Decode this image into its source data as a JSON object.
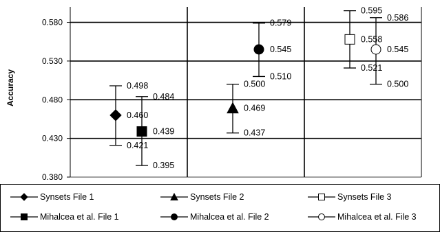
{
  "chart_data": {
    "type": "scatter",
    "ylabel": "Accuracy",
    "ylim": [
      0.38,
      0.6
    ],
    "yticks": [
      "0.380",
      "0.430",
      "0.480",
      "0.530",
      "0.580"
    ],
    "groups": 3,
    "series": [
      {
        "name": "Synsets File 1",
        "marker": "diamond",
        "filled": true,
        "group": 1,
        "offset": -1,
        "value": 0.46,
        "value_label": "0.460",
        "upper": 0.498,
        "upper_label": "0.498",
        "lower": 0.421,
        "lower_label": "0.421"
      },
      {
        "name": "Mihalcea et al. File 1",
        "marker": "square",
        "filled": true,
        "group": 1,
        "offset": 1,
        "value": 0.439,
        "value_label": "0.439",
        "upper": 0.484,
        "upper_label": "0.484",
        "lower": 0.395,
        "lower_label": "0.395"
      },
      {
        "name": "Synsets File 2",
        "marker": "triangle",
        "filled": true,
        "group": 2,
        "offset": -1,
        "value": 0.469,
        "value_label": "0.469",
        "upper": 0.5,
        "upper_label": "0.500",
        "lower": 0.437,
        "lower_label": "0.437"
      },
      {
        "name": "Mihalcea et al. File 2",
        "marker": "circle",
        "filled": true,
        "group": 2,
        "offset": 1,
        "value": 0.545,
        "value_label": "0.545",
        "upper": 0.579,
        "upper_label": "0.579",
        "lower": 0.51,
        "lower_label": "0.510"
      },
      {
        "name": "Synsets File 3",
        "marker": "square",
        "filled": false,
        "group": 3,
        "offset": -1,
        "value": 0.558,
        "value_label": "0.558",
        "upper": 0.595,
        "upper_label": "0.595",
        "lower": 0.521,
        "lower_label": "0.521"
      },
      {
        "name": "Mihalcea et al. File 3",
        "marker": "circle",
        "filled": false,
        "group": 3,
        "offset": 1,
        "value": 0.545,
        "value_label": "0.545",
        "upper": 0.586,
        "upper_label": "0.586",
        "lower": 0.5,
        "lower_label": "0.500"
      }
    ],
    "legend": {
      "position": "bottom",
      "rows": [
        [
          "Synsets File 1",
          "Synsets File 2",
          "Synsets File 3"
        ],
        [
          "Mihalcea et al. File 1",
          "Mihalcea et al. File 2",
          "Mihalcea et al. File 3"
        ]
      ]
    }
  }
}
